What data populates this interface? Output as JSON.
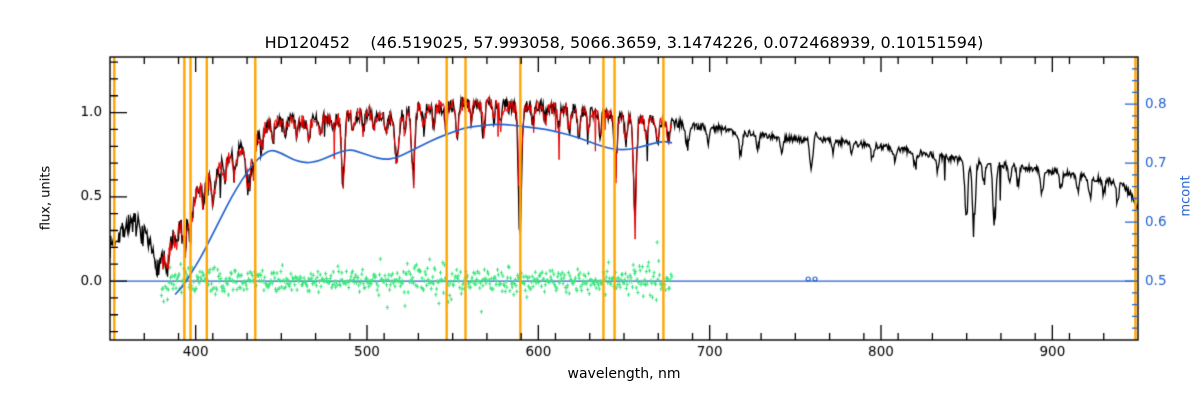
{
  "chart_data": {
    "type": "line",
    "title": "HD120452    (46.519025, 57.993058, 5066.3659, 3.1474226, 0.072468939, 0.10151594)",
    "star_id": "HD120452",
    "params": [
      46.519025,
      57.993058,
      5066.3659,
      3.1474226,
      0.072468939,
      0.10151594
    ],
    "xlabel": "wavelength, nm",
    "ylabel_left": "flux, units",
    "ylabel_right": "mcont",
    "grid": false,
    "axes": {
      "x": {
        "min": 350,
        "max": 950,
        "majors": [
          400,
          500,
          600,
          700,
          800,
          900
        ],
        "minor_step": 20
      },
      "y_left": {
        "min": -0.35,
        "max": 1.33,
        "majors": [
          0.0,
          0.5,
          1.0
        ],
        "minor_step": 0.1
      },
      "y_right": {
        "min": 0.4,
        "max": 0.88,
        "majors": [
          0.5,
          0.6,
          0.7,
          0.8
        ],
        "minor_step": 0.02
      }
    },
    "colors": {
      "observed": "#000000",
      "fit": "#ee0000",
      "continuum": "#2563cf",
      "residual": "#3ce57c",
      "marker_lines": "#ffa500",
      "axis": "#000000",
      "background": "#ffffff"
    },
    "noise_seeds": {
      "observed": 7,
      "fit": 13,
      "residual": 29
    },
    "marker_wavelengths": [
      352.5,
      393.4,
      397.0,
      406.5,
      434.8,
      546.5,
      557.5,
      589.5,
      638.0,
      644.5,
      673.0,
      948.5
    ],
    "series": {
      "observed": {
        "name": "observed-spectrum",
        "range": [
          350,
          950
        ],
        "anchors": [
          [
            350,
            0.2
          ],
          [
            354,
            0.27
          ],
          [
            358,
            0.31
          ],
          [
            362,
            0.35
          ],
          [
            366,
            0.33
          ],
          [
            370,
            0.26
          ],
          [
            373,
            0.2
          ],
          [
            376,
            0.13
          ],
          [
            378,
            0.08
          ],
          [
            380,
            0.13
          ],
          [
            383,
            0.18
          ],
          [
            386,
            0.24
          ],
          [
            390,
            0.33
          ],
          [
            394,
            0.4
          ],
          [
            398,
            0.47
          ],
          [
            402,
            0.54
          ],
          [
            406,
            0.58
          ],
          [
            410,
            0.62
          ],
          [
            414,
            0.67
          ],
          [
            418,
            0.72
          ],
          [
            422,
            0.76
          ],
          [
            426,
            0.79
          ],
          [
            430,
            0.74
          ],
          [
            434,
            0.84
          ],
          [
            438,
            0.89
          ],
          [
            442,
            0.92
          ],
          [
            446,
            0.94
          ],
          [
            452,
            0.95
          ],
          [
            458,
            0.96
          ],
          [
            464,
            0.94
          ],
          [
            470,
            0.95
          ],
          [
            476,
            0.97
          ],
          [
            482,
            0.96
          ],
          [
            488,
            0.98
          ],
          [
            494,
            0.99
          ],
          [
            500,
            1.0
          ],
          [
            506,
            0.99
          ],
          [
            512,
            0.97
          ],
          [
            518,
            0.97
          ],
          [
            524,
            1.01
          ],
          [
            530,
            1.03
          ],
          [
            536,
            1.02
          ],
          [
            542,
            1.03
          ],
          [
            548,
            1.04
          ],
          [
            554,
            1.05
          ],
          [
            560,
            1.05
          ],
          [
            566,
            1.06
          ],
          [
            572,
            1.07
          ],
          [
            578,
            1.05
          ],
          [
            584,
            1.03
          ],
          [
            590,
            1.03
          ],
          [
            596,
            1.04
          ],
          [
            602,
            1.04
          ],
          [
            608,
            1.03
          ],
          [
            614,
            1.03
          ],
          [
            620,
            1.02
          ],
          [
            626,
            1.01
          ],
          [
            632,
            1.0
          ],
          [
            638,
            0.99
          ],
          [
            644,
            0.98
          ],
          [
            650,
            0.97
          ],
          [
            656,
            0.96
          ],
          [
            662,
            0.96
          ],
          [
            668,
            0.95
          ],
          [
            674,
            0.94
          ],
          [
            680,
            0.94
          ],
          [
            688,
            0.93
          ],
          [
            696,
            0.92
          ],
          [
            704,
            0.91
          ],
          [
            712,
            0.89
          ],
          [
            720,
            0.88
          ],
          [
            728,
            0.87
          ],
          [
            736,
            0.86
          ],
          [
            744,
            0.85
          ],
          [
            752,
            0.84
          ],
          [
            758,
            0.84
          ],
          [
            762,
            0.88
          ],
          [
            766,
            0.84
          ],
          [
            774,
            0.83
          ],
          [
            782,
            0.82
          ],
          [
            790,
            0.81
          ],
          [
            798,
            0.8
          ],
          [
            806,
            0.79
          ],
          [
            814,
            0.78
          ],
          [
            822,
            0.76
          ],
          [
            830,
            0.75
          ],
          [
            838,
            0.73
          ],
          [
            846,
            0.72
          ],
          [
            854,
            0.71
          ],
          [
            862,
            0.7
          ],
          [
            870,
            0.69
          ],
          [
            878,
            0.68
          ],
          [
            886,
            0.67
          ],
          [
            894,
            0.66
          ],
          [
            902,
            0.65
          ],
          [
            910,
            0.64
          ],
          [
            918,
            0.62
          ],
          [
            926,
            0.61
          ],
          [
            934,
            0.59
          ],
          [
            940,
            0.57
          ],
          [
            945,
            0.53
          ],
          [
            948,
            0.48
          ],
          [
            950,
            0.43
          ]
        ],
        "noise_amp": [
          [
            350,
            0.065
          ],
          [
            370,
            0.07
          ],
          [
            380,
            0.06
          ],
          [
            395,
            0.055
          ],
          [
            415,
            0.05
          ],
          [
            435,
            0.045
          ],
          [
            460,
            0.04
          ],
          [
            490,
            0.042
          ],
          [
            520,
            0.045
          ],
          [
            550,
            0.045
          ],
          [
            580,
            0.04
          ],
          [
            610,
            0.038
          ],
          [
            640,
            0.035
          ],
          [
            670,
            0.032
          ],
          [
            700,
            0.022
          ],
          [
            740,
            0.02
          ],
          [
            780,
            0.018
          ],
          [
            820,
            0.02
          ],
          [
            860,
            0.022
          ],
          [
            900,
            0.02
          ],
          [
            930,
            0.022
          ],
          [
            950,
            0.028
          ]
        ],
        "absorption_lines": [
          [
            383.5,
            0.12,
            0.9
          ],
          [
            389,
            0.1,
            0.8
          ],
          [
            393.4,
            0.22,
            1.0
          ],
          [
            396.8,
            0.2,
            1.0
          ],
          [
            404.5,
            0.1,
            0.7
          ],
          [
            410.2,
            0.16,
            0.9
          ],
          [
            417,
            0.1,
            0.7
          ],
          [
            422.7,
            0.15,
            0.8
          ],
          [
            430.8,
            0.22,
            1.2
          ],
          [
            434.0,
            0.16,
            0.9
          ],
          [
            438.5,
            0.12,
            0.8
          ],
          [
            445,
            0.1,
            0.7
          ],
          [
            452,
            0.1,
            0.7
          ],
          [
            459,
            0.09,
            0.7
          ],
          [
            466,
            0.1,
            0.7
          ],
          [
            473,
            0.09,
            0.7
          ],
          [
            480,
            0.08,
            0.7
          ],
          [
            486.1,
            0.42,
            0.9
          ],
          [
            492,
            0.09,
            0.7
          ],
          [
            498,
            0.1,
            0.7
          ],
          [
            504,
            0.11,
            0.7
          ],
          [
            511,
            0.09,
            0.7
          ],
          [
            517.3,
            0.28,
            1.0
          ],
          [
            522,
            0.1,
            0.7
          ],
          [
            527.0,
            0.42,
            0.9
          ],
          [
            533,
            0.11,
            0.7
          ],
          [
            539,
            0.1,
            0.7
          ],
          [
            546,
            0.12,
            0.7
          ],
          [
            552.5,
            0.2,
            0.8
          ],
          [
            561,
            0.1,
            0.7
          ],
          [
            568,
            0.18,
            0.8
          ],
          [
            574,
            0.1,
            0.7
          ],
          [
            578,
            0.12,
            0.7
          ],
          [
            589.3,
            0.68,
            0.9
          ],
          [
            597,
            0.12,
            0.7
          ],
          [
            604,
            0.09,
            0.7
          ],
          [
            612,
            0.12,
            0.7
          ],
          [
            618,
            0.14,
            0.7
          ],
          [
            623.5,
            0.16,
            0.8
          ],
          [
            629,
            0.1,
            0.7
          ],
          [
            636,
            0.12,
            0.7
          ],
          [
            645.2,
            0.34,
            0.8
          ],
          [
            651,
            0.12,
            0.7
          ],
          [
            656.3,
            0.58,
            0.9
          ],
          [
            663,
            0.11,
            0.7
          ],
          [
            669.5,
            0.14,
            0.7
          ],
          [
            676,
            0.1,
            0.7
          ],
          [
            687,
            0.16,
            0.9
          ],
          [
            699,
            0.09,
            0.7
          ],
          [
            718,
            0.13,
            0.9
          ],
          [
            728,
            0.08,
            0.7
          ],
          [
            742,
            0.09,
            0.8
          ],
          [
            759.4,
            0.2,
            0.9
          ],
          [
            772,
            0.08,
            0.7
          ],
          [
            783,
            0.07,
            0.7
          ],
          [
            795,
            0.08,
            0.7
          ],
          [
            808,
            0.07,
            0.7
          ],
          [
            820,
            0.1,
            0.8
          ],
          [
            833,
            0.08,
            0.7
          ],
          [
            849.8,
            0.32,
            0.9
          ],
          [
            854.2,
            0.4,
            0.9
          ],
          [
            860,
            0.12,
            0.8
          ],
          [
            866.2,
            0.34,
            0.9
          ],
          [
            875,
            0.1,
            0.7
          ],
          [
            880,
            0.1,
            0.7
          ],
          [
            894,
            0.15,
            0.8
          ],
          [
            905,
            0.1,
            0.7
          ],
          [
            915,
            0.09,
            0.8
          ],
          [
            922,
            0.11,
            0.8
          ],
          [
            930,
            0.09,
            0.7
          ],
          [
            938,
            0.1,
            0.8
          ]
        ]
      },
      "fit": {
        "name": "fitted-spectrum",
        "range": [
          380.5,
          678
        ]
      },
      "continuum": {
        "name": "continuum-fit",
        "range": [
          388,
          678
        ],
        "anchors": [
          [
            388,
            -0.08
          ],
          [
            392,
            -0.04
          ],
          [
            397,
            0.04
          ],
          [
            403,
            0.14
          ],
          [
            409,
            0.26
          ],
          [
            415,
            0.38
          ],
          [
            421,
            0.5
          ],
          [
            427,
            0.6
          ],
          [
            433,
            0.69
          ],
          [
            439,
            0.75
          ],
          [
            444,
            0.78
          ],
          [
            450,
            0.76
          ],
          [
            457,
            0.72
          ],
          [
            464,
            0.7
          ],
          [
            471,
            0.71
          ],
          [
            478,
            0.74
          ],
          [
            485,
            0.77
          ],
          [
            491,
            0.78
          ],
          [
            497,
            0.76
          ],
          [
            503,
            0.74
          ],
          [
            510,
            0.72
          ],
          [
            517,
            0.73
          ],
          [
            525,
            0.77
          ],
          [
            533,
            0.81
          ],
          [
            541,
            0.85
          ],
          [
            549,
            0.88
          ],
          [
            557,
            0.91
          ],
          [
            565,
            0.92
          ],
          [
            573,
            0.93
          ],
          [
            581,
            0.93
          ],
          [
            589,
            0.92
          ],
          [
            597,
            0.91
          ],
          [
            605,
            0.9
          ],
          [
            613,
            0.88
          ],
          [
            621,
            0.86
          ],
          [
            629,
            0.83
          ],
          [
            637,
            0.8
          ],
          [
            645,
            0.78
          ],
          [
            653,
            0.78
          ],
          [
            661,
            0.8
          ],
          [
            668,
            0.82
          ],
          [
            674,
            0.83
          ],
          [
            678,
            0.82
          ]
        ]
      },
      "zero_line": {
        "name": "zero-baseline",
        "y": 0.0,
        "range": [
          350,
          950
        ],
        "markers_x": [
          757.5,
          761.5
        ]
      },
      "residual": {
        "name": "residuals",
        "range": [
          380,
          678
        ],
        "amp_anchors": [
          [
            380,
            0.09
          ],
          [
            392,
            0.08
          ],
          [
            405,
            0.065
          ],
          [
            420,
            0.055
          ],
          [
            435,
            0.05
          ],
          [
            450,
            0.05
          ],
          [
            465,
            0.045
          ],
          [
            480,
            0.05
          ],
          [
            495,
            0.05
          ],
          [
            510,
            0.05
          ],
          [
            522,
            0.06
          ],
          [
            532,
            0.1
          ],
          [
            540,
            0.12
          ],
          [
            547,
            0.09
          ],
          [
            555,
            0.065
          ],
          [
            568,
            0.06
          ],
          [
            580,
            0.065
          ],
          [
            592,
            0.07
          ],
          [
            604,
            0.055
          ],
          [
            616,
            0.05
          ],
          [
            628,
            0.055
          ],
          [
            640,
            0.06
          ],
          [
            650,
            0.065
          ],
          [
            660,
            0.09
          ],
          [
            668,
            0.1
          ],
          [
            674,
            0.08
          ],
          [
            678,
            0.07
          ]
        ]
      }
    }
  }
}
